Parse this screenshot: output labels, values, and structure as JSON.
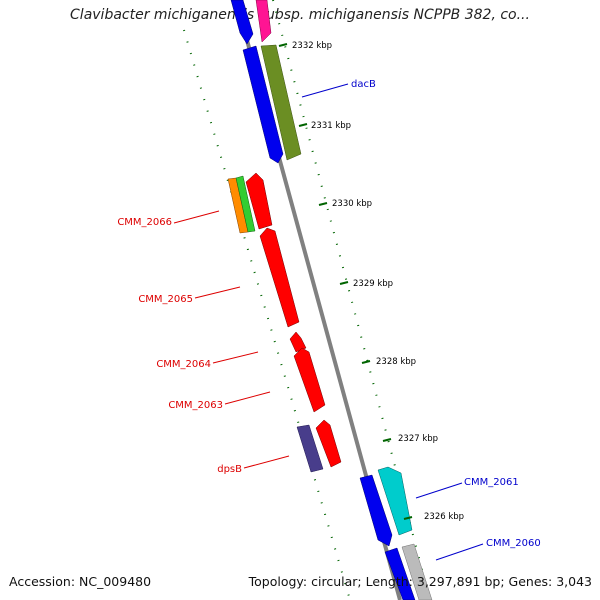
{
  "title": "Clavibacter michiganensis subsp. michiganensis NCPPB 382, co...",
  "footer": {
    "accession": "Accession: NC_009480",
    "summary": "Topology: circular; Length: 3,297,891 bp; Genes: 3,043"
  },
  "scale_ticks": [
    "2332 kbp",
    "2331 kbp",
    "2330 kbp",
    "2329 kbp",
    "2328 kbp",
    "2327 kbp",
    "2326 kbp"
  ],
  "gene_labels": {
    "dacB": "dacB",
    "CMM_2066": "CMM_2066",
    "CMM_2065": "CMM_2065",
    "CMM_2064": "CMM_2064",
    "CMM_2063": "CMM_2063",
    "dpsB": "dpsB",
    "CMM_2061": "CMM_2061",
    "CMM_2060": "CMM_2060"
  },
  "colors": {
    "forward_label": "#0000cc",
    "reverse_label": "#dd0000",
    "backbone": "#808080",
    "tick": "#006400",
    "cds_blue": "#0000ee",
    "cds_olive": "#6b8e23",
    "cds_red": "#ff0000",
    "cds_purple": "#483d8b",
    "cds_cyan": "#00cccc",
    "cds_gray": "#bbbbbb",
    "cds_magenta": "#ff1493",
    "cds_orange": "#ff8c00",
    "cds_green": "#32cd32"
  }
}
